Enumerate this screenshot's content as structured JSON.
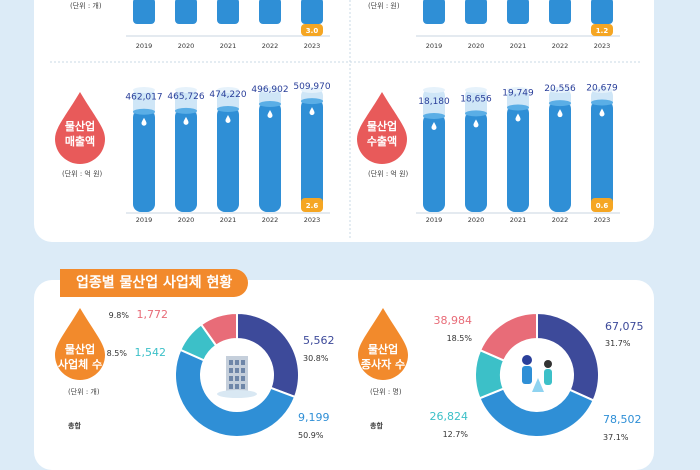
{
  "top_charts": {
    "units": [
      "(단위 : 개)",
      "(단위 : 원)"
    ],
    "years": [
      "2019",
      "2020",
      "2021",
      "2022",
      "2023"
    ],
    "badges": [
      "3.0",
      "1.2"
    ]
  },
  "chart_data": [
    {
      "type": "bar",
      "title": "물산업 매출액",
      "unit": "(단위 : 억 원)",
      "categories": [
        "2019",
        "2020",
        "2021",
        "2022",
        "2023"
      ],
      "values": [
        462017,
        465726,
        474220,
        496902,
        509970
      ],
      "value_labels": [
        "462,017",
        "465,726",
        "474,220",
        "496,902",
        "509,970"
      ],
      "badge": "2.6",
      "ylim": [
        0,
        560000
      ]
    },
    {
      "type": "bar",
      "title": "물산업 수출액",
      "unit": "(단위 : 억 원)",
      "categories": [
        "2019",
        "2020",
        "2021",
        "2022",
        "2023"
      ],
      "values": [
        18180,
        18656,
        19749,
        20556,
        20679
      ],
      "value_labels": [
        "18,180",
        "18,656",
        "19,749",
        "20,556",
        "20,679"
      ],
      "badge": "0.6",
      "ylim": [
        0,
        23000
      ]
    },
    {
      "type": "pie",
      "title": "물산업 사업체 수",
      "unit": "(단위 : 개)",
      "total_label": "총합",
      "slices": [
        {
          "value": 5562,
          "label": "5,562",
          "pct": "30.8%",
          "color": "#3d4a9a"
        },
        {
          "value": 9199,
          "label": "9,199",
          "pct": "50.9%",
          "color": "#2f8fd6"
        },
        {
          "value": 1542,
          "label": "1,542",
          "pct": "8.5%",
          "color": "#3cc0c8"
        },
        {
          "value": 1772,
          "label": "1,772",
          "pct": "9.8%",
          "color": "#e86c78"
        }
      ]
    },
    {
      "type": "pie",
      "title": "물산업 종사자 수",
      "unit": "(단위 : 명)",
      "total_label": "총합",
      "slices": [
        {
          "value": 67075,
          "label": "67,075",
          "pct": "31.7%",
          "color": "#3d4a9a"
        },
        {
          "value": 78502,
          "label": "78,502",
          "pct": "37.1%",
          "color": "#2f8fd6"
        },
        {
          "value": 26824,
          "label": "26,824",
          "pct": "12.7%",
          "color": "#3cc0c8"
        },
        {
          "value": 38984,
          "label": "38,984",
          "pct": "18.5%",
          "color": "#e86c78"
        }
      ]
    }
  ],
  "section_title": "업종별 물산업 사업체 현황",
  "colors": {
    "bar": "#2f8fd6",
    "tube": "#cfe6f7",
    "badge": "#f5a623",
    "drop_red": "#e85a5a",
    "drop_orange": "#f28a2c",
    "text_value": "#2a3f9a"
  }
}
